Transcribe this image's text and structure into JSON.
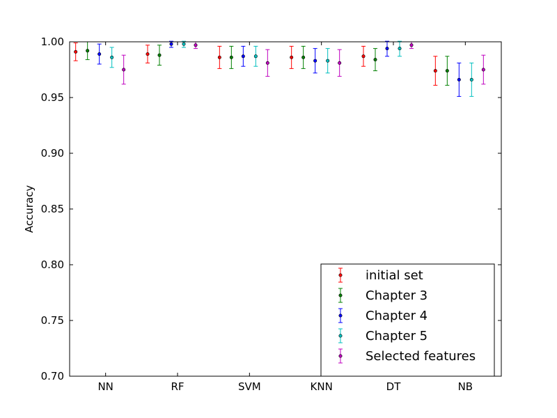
{
  "chart_data": {
    "type": "scatter",
    "subtype": "errorbar",
    "title": "",
    "xlabel": "",
    "ylabel": "Accuracy",
    "ylim": [
      0.7,
      1.0
    ],
    "yticks": [
      "0.70",
      "0.75",
      "0.80",
      "0.85",
      "0.90",
      "0.95",
      "1.00"
    ],
    "categories": [
      "NN",
      "RF",
      "SVM",
      "KNN",
      "DT",
      "NB"
    ],
    "grid": false,
    "legend": "lower-right",
    "series": [
      {
        "name": "initial set",
        "color": "#ff0000",
        "values": [
          0.991,
          0.989,
          0.986,
          0.986,
          0.987,
          0.974
        ],
        "errors": [
          0.008,
          0.008,
          0.01,
          0.01,
          0.009,
          0.013
        ]
      },
      {
        "name": "Chapter 3",
        "color": "#008000",
        "values": [
          0.992,
          0.988,
          0.986,
          0.986,
          0.984,
          0.974
        ],
        "errors": [
          0.008,
          0.009,
          0.01,
          0.01,
          0.01,
          0.013
        ]
      },
      {
        "name": "Chapter 4",
        "color": "#0000ff",
        "values": [
          0.989,
          0.998,
          0.987,
          0.983,
          0.994,
          0.966
        ],
        "errors": [
          0.009,
          0.003,
          0.009,
          0.011,
          0.007,
          0.015
        ]
      },
      {
        "name": "Chapter 5",
        "color": "#00bfbf",
        "values": [
          0.986,
          0.998,
          0.987,
          0.983,
          0.994,
          0.966
        ],
        "errors": [
          0.009,
          0.003,
          0.009,
          0.011,
          0.007,
          0.015
        ]
      },
      {
        "name": "Selected features",
        "color": "#bf00bf",
        "values": [
          0.975,
          0.997,
          0.981,
          0.981,
          0.997,
          0.975
        ],
        "errors": [
          0.013,
          0.003,
          0.012,
          0.012,
          0.003,
          0.013
        ]
      }
    ]
  }
}
